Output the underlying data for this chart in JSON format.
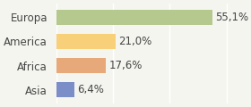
{
  "categories": [
    "Europa",
    "America",
    "Africa",
    "Asia"
  ],
  "values": [
    55.1,
    21.0,
    17.6,
    6.4
  ],
  "labels": [
    "55,1%",
    "21,0%",
    "17,6%",
    "6,4%"
  ],
  "bar_colors": [
    "#b5c98e",
    "#f9d07a",
    "#e8a97a",
    "#7b8ec8"
  ],
  "background_color": "#f5f5f0",
  "xlim": [
    0,
    65
  ],
  "label_fontsize": 8.5,
  "tick_fontsize": 8.5
}
